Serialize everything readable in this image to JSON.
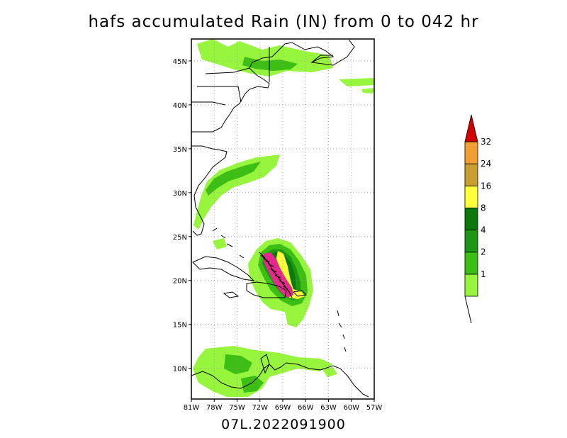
{
  "title": "hafs accumulated Rain (IN) from 0 to 042 hr",
  "subtitle": "07L.2022091900",
  "map": {
    "lon_range": [
      -81,
      -57
    ],
    "lat_range": [
      6.5,
      47.5
    ],
    "x_ticks": [
      {
        "value": -81,
        "label": "81W"
      },
      {
        "value": -78,
        "label": "78W"
      },
      {
        "value": -75,
        "label": "75W"
      },
      {
        "value": -72,
        "label": "72W"
      },
      {
        "value": -69,
        "label": "69W"
      },
      {
        "value": -66,
        "label": "66W"
      },
      {
        "value": -63,
        "label": "63W"
      },
      {
        "value": -60,
        "label": "60W"
      },
      {
        "value": -57,
        "label": "57W"
      }
    ],
    "y_ticks": [
      {
        "value": 10,
        "label": "10N"
      },
      {
        "value": 15,
        "label": "15N"
      },
      {
        "value": 20,
        "label": "20N"
      },
      {
        "value": 25,
        "label": "25N"
      },
      {
        "value": 30,
        "label": "30N"
      },
      {
        "value": 35,
        "label": "35N"
      },
      {
        "value": 40,
        "label": "40N"
      },
      {
        "value": 45,
        "label": "45N"
      }
    ],
    "grid": true
  },
  "colorbar": {
    "levels": [
      {
        "label": "1",
        "color": "#96f53c"
      },
      {
        "label": "2",
        "color": "#3cbe14"
      },
      {
        "label": "4",
        "color": "#1e9614"
      },
      {
        "label": "8",
        "color": "#0a780a"
      },
      {
        "label": "16",
        "color": "#ffff3c"
      },
      {
        "label": "24",
        "color": "#c8a032"
      },
      {
        "label": "32",
        "color": "#f0a032"
      }
    ],
    "over_color": "#d20000",
    "core_color": "#e6288c"
  }
}
